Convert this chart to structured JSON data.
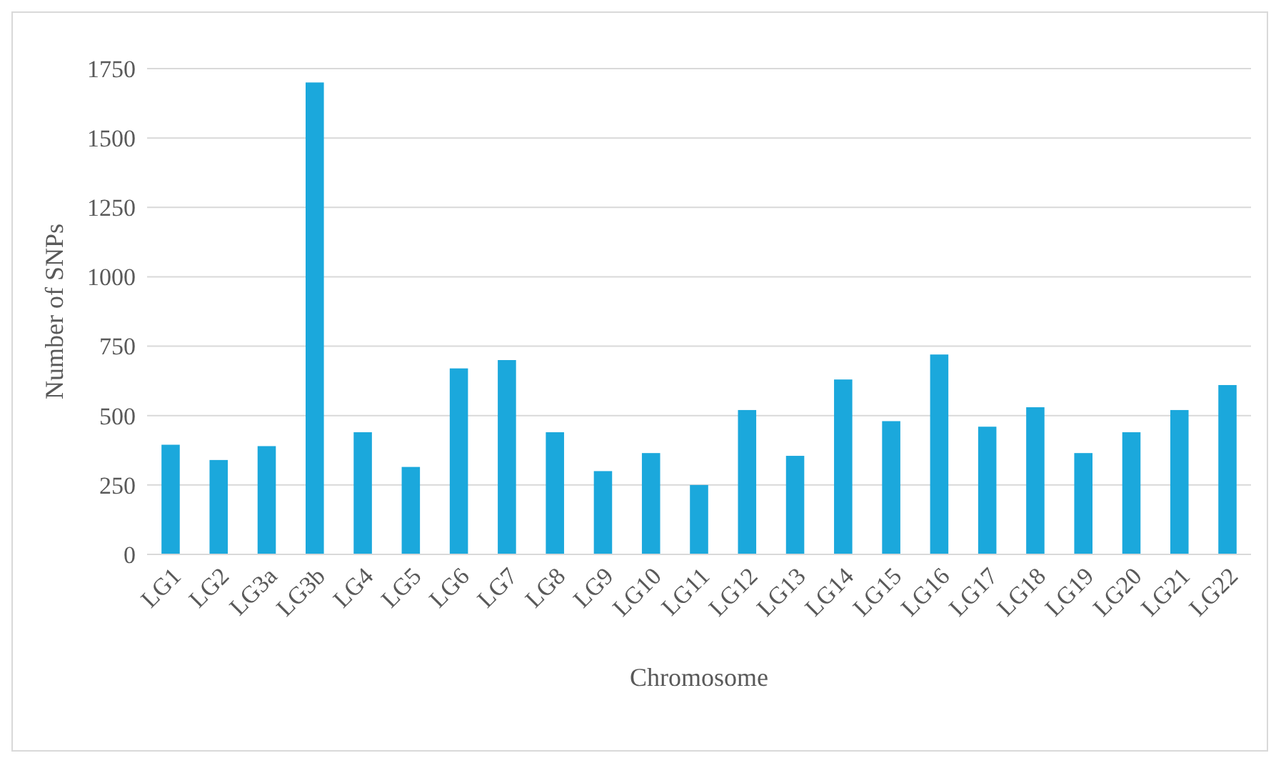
{
  "chart_data": {
    "type": "bar",
    "xlabel": "Chromosome",
    "ylabel": "Number of SNPs",
    "categories": [
      "LG1",
      "LG2",
      "LG3a",
      "LG3b",
      "LG4",
      "LG5",
      "LG6",
      "LG7",
      "LG8",
      "LG9",
      "LG10",
      "LG11",
      "LG12",
      "LG13",
      "LG14",
      "LG15",
      "LG16",
      "LG17",
      "LG18",
      "LG19",
      "LG20",
      "LG21",
      "LG22"
    ],
    "values": [
      395,
      340,
      390,
      1700,
      440,
      315,
      670,
      700,
      440,
      300,
      365,
      250,
      520,
      355,
      630,
      480,
      720,
      460,
      530,
      365,
      440,
      520,
      610
    ],
    "color": "#1ba8dc",
    "ylim": [
      0,
      1750
    ],
    "yticks": [
      0,
      250,
      500,
      750,
      1000,
      1250,
      1500,
      1750
    ],
    "grid": "y"
  }
}
